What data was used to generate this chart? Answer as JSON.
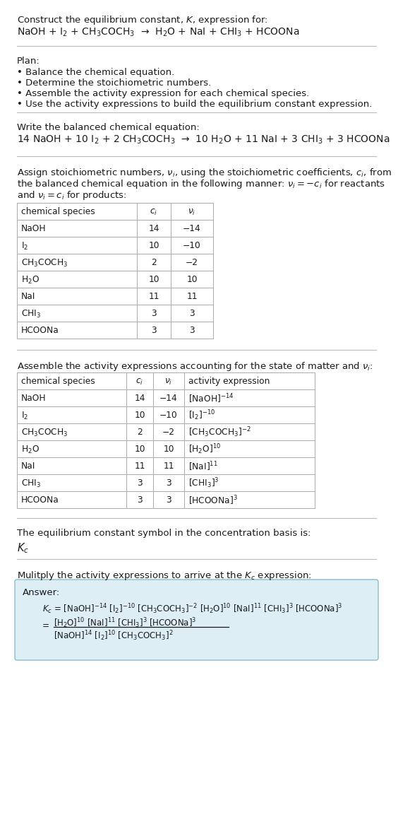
{
  "bg_color": "#ffffff",
  "text_color": "#1a1a1a",
  "gray_color": "#666666",
  "title_line1": "Construct the equilibrium constant, $K$, expression for:",
  "reaction_unbalanced": "NaOH + I$_2$ + CH$_3$COCH$_3$  →  H$_2$O + NaI + CHI$_3$ + HCOONa",
  "plan_title": "Plan:",
  "plan_items": [
    "• Balance the chemical equation.",
    "• Determine the stoichiometric numbers.",
    "• Assemble the activity expression for each chemical species.",
    "• Use the activity expressions to build the equilibrium constant expression."
  ],
  "balanced_label": "Write the balanced chemical equation:",
  "balanced_eq": "14 NaOH + 10 I$_2$ + 2 CH$_3$COCH$_3$  →  10 H$_2$O + 11 NaI + 3 CHI$_3$ + 3 HCOONa",
  "table1_headers": [
    "chemical species",
    "$c_i$",
    "$\\nu_i$"
  ],
  "table1_rows": [
    [
      "NaOH",
      "14",
      "−14"
    ],
    [
      "I$_2$",
      "10",
      "−10"
    ],
    [
      "CH$_3$COCH$_3$",
      "2",
      "−2"
    ],
    [
      "H$_2$O",
      "10",
      "10"
    ],
    [
      "NaI",
      "11",
      "11"
    ],
    [
      "CHI$_3$",
      "3",
      "3"
    ],
    [
      "HCOONa",
      "3",
      "3"
    ]
  ],
  "activity_label": "Assemble the activity expressions accounting for the state of matter and $\\nu_i$:",
  "table2_headers": [
    "chemical species",
    "$c_i$",
    "$\\nu_i$",
    "activity expression"
  ],
  "table2_rows": [
    [
      "NaOH",
      "14",
      "−14",
      "[NaOH]$^{-14}$"
    ],
    [
      "I$_2$",
      "10",
      "−10",
      "[I$_2$]$^{-10}$"
    ],
    [
      "CH$_3$COCH$_3$",
      "2",
      "−2",
      "[CH$_3$COCH$_3$]$^{-2}$"
    ],
    [
      "H$_2$O",
      "10",
      "10",
      "[H$_2$O]$^{10}$"
    ],
    [
      "NaI",
      "11",
      "11",
      "[NaI]$^{11}$"
    ],
    [
      "CHI$_3$",
      "3",
      "3",
      "[CHI$_3$]$^{3}$"
    ],
    [
      "HCOONa",
      "3",
      "3",
      "[HCOONa]$^{3}$"
    ]
  ],
  "kc_symbol_label": "The equilibrium constant symbol in the concentration basis is:",
  "kc_symbol": "$K_c$",
  "multiply_label": "Mulitply the activity expressions to arrive at the $K_c$ expression:",
  "answer_box_color": "#ddeef5",
  "answer_box_border": "#88bbcc",
  "stoich_para": "Assign stoichiometric numbers, $\\nu_i$, using the stoichiometric coefficients, $c_i$, from the balanced chemical equation in the following manner: $\\nu_i = -c_i$ for reactants and $\\nu_i = c_i$ for products:"
}
